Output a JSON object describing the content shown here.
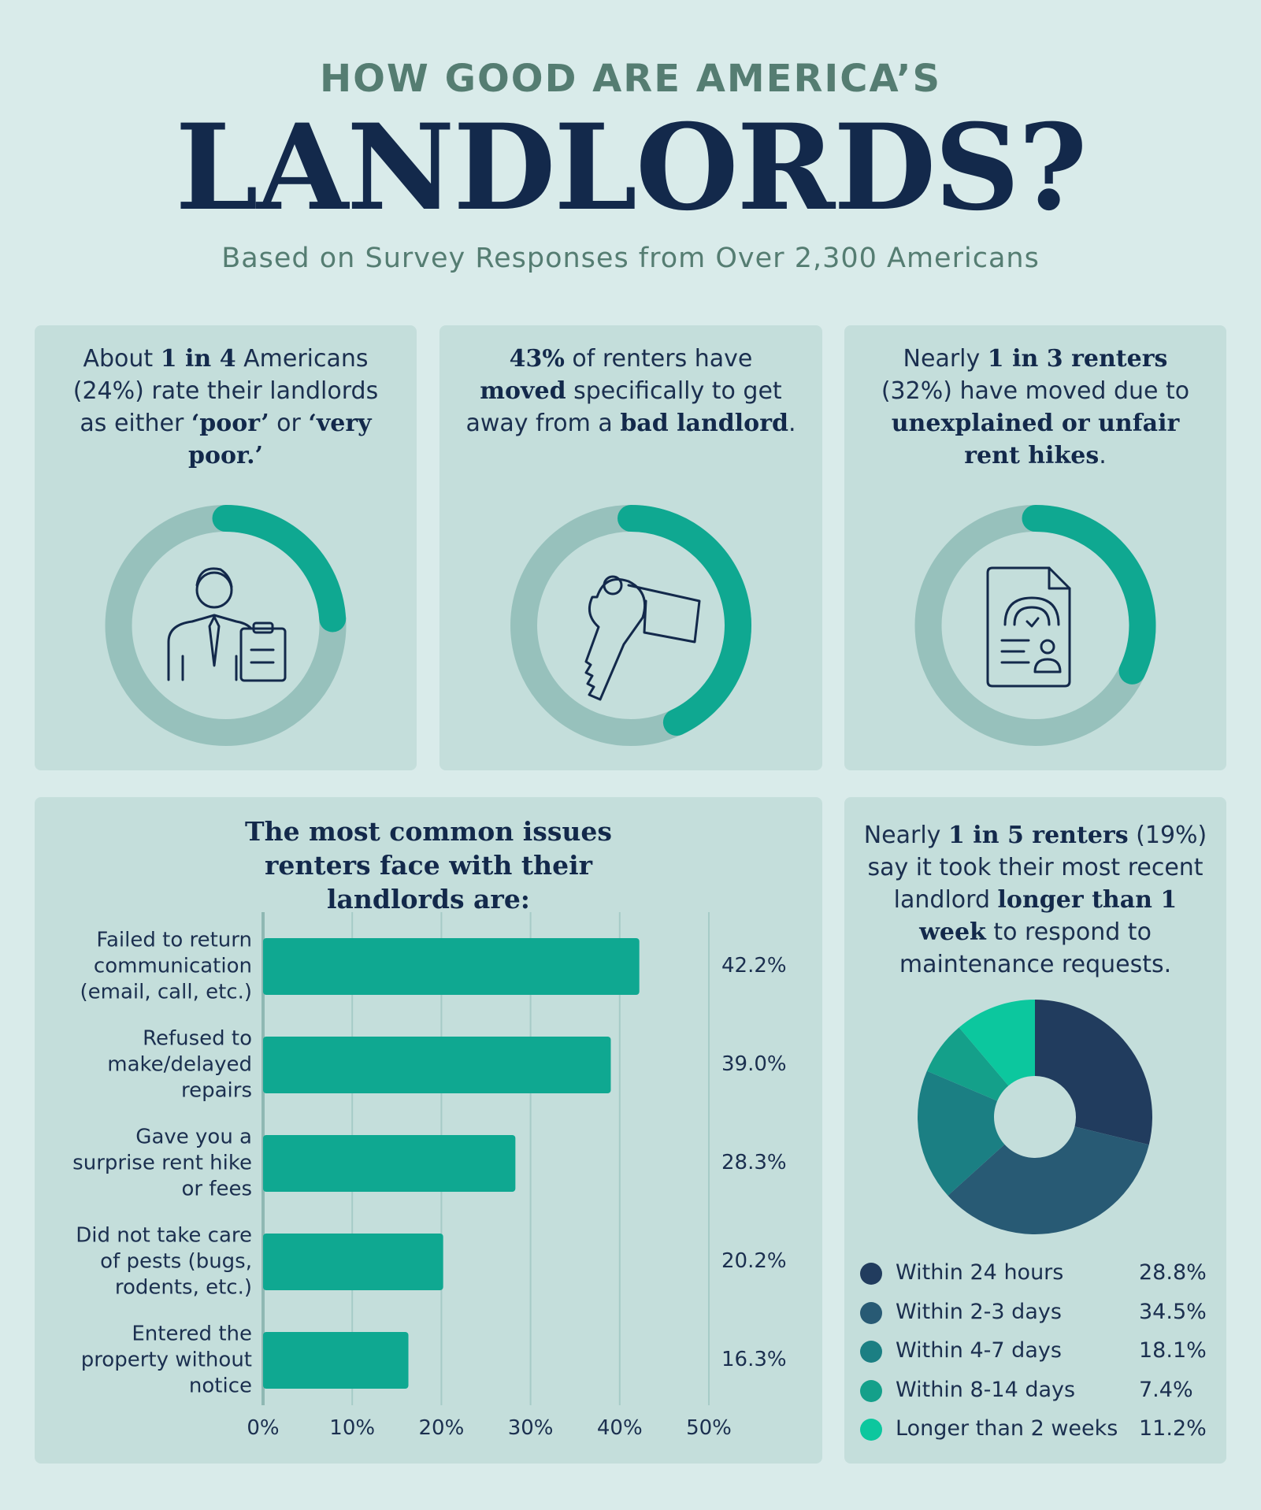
{
  "header": {
    "kicker": "HOW GOOD ARE AMERICA’S",
    "title": "LANDLORDS?",
    "subtitle": "Based on Survey Responses from Over 2,300 Americans"
  },
  "chart_data": [
    {
      "type": "ring",
      "text": [
        {
          "text": "About "
        },
        {
          "text": "1 in 4",
          "bold": true
        },
        {
          "text": " Americans (24%) rate their landlords as either "
        },
        {
          "text": "‘poor’",
          "bold": true
        },
        {
          "text": " or "
        },
        {
          "text": "‘very poor.’",
          "bold": true
        }
      ],
      "value": 24,
      "lim": [
        0,
        100
      ],
      "color": "#0fa891",
      "track_color": "#97c1bc"
    },
    {
      "type": "ring",
      "text": [
        {
          "text": "43%",
          "bold": true
        },
        {
          "text": " of renters have "
        },
        {
          "text": "moved",
          "bold": true
        },
        {
          "text": " specifically to get away from a "
        },
        {
          "text": "bad landlord",
          "bold": true
        },
        {
          "text": "."
        }
      ],
      "value": 43,
      "lim": [
        0,
        100
      ],
      "color": "#0fa891",
      "track_color": "#97c1bc"
    },
    {
      "type": "ring",
      "text": [
        {
          "text": "Nearly "
        },
        {
          "text": "1 in 3 renters",
          "bold": true
        },
        {
          "text": " (32%) have moved due to "
        },
        {
          "text": "unexplained or unfair rent hikes",
          "bold": true
        },
        {
          "text": "."
        }
      ],
      "value": 32,
      "lim": [
        0,
        100
      ],
      "color": "#0fa891",
      "track_color": "#97c1bc"
    },
    {
      "type": "hbar",
      "title": "The most common issues renters face with their landlords are:",
      "categories": [
        "Failed to return communication (email, call, etc.)",
        "Refused to make/delayed repairs",
        "Gave you a surprise rent hike or fees",
        "Did not take care of pests (bugs, rodents, etc.)",
        "Entered the property without notice"
      ],
      "values": [
        42.2,
        39.0,
        28.3,
        20.2,
        16.3
      ],
      "value_labels": [
        "42.2%",
        "39.0%",
        "28.3%",
        "20.2%",
        "16.3%"
      ],
      "color": "#0fa891",
      "xlim": [
        0,
        50
      ],
      "xticks": [
        {
          "value": 0,
          "label": "0%"
        },
        {
          "value": 10,
          "label": "10%"
        },
        {
          "value": 20,
          "label": "20%"
        },
        {
          "value": 30,
          "label": "30%"
        },
        {
          "value": 40,
          "label": "40%"
        },
        {
          "value": 50,
          "label": "50%"
        }
      ],
      "grid": true
    },
    {
      "type": "donut",
      "text": [
        {
          "text": "Nearly "
        },
        {
          "text": "1 in 5 renters",
          "bold": true
        },
        {
          "text": " (19%) say it took their most recent landlord "
        },
        {
          "text": "longer than 1 week",
          "bold": true
        },
        {
          "text": " to respond to maintenance requests."
        }
      ],
      "categories": [
        "Within 24 hours",
        "Within 2-3 days",
        "Within 4-7 days",
        "Within 8-14 days",
        "Longer than 2 weeks"
      ],
      "values": [
        28.8,
        34.5,
        18.1,
        7.4,
        11.2
      ],
      "value_labels": [
        "28.8%",
        "34.5%",
        "18.1%",
        "7.4%",
        "11.2%"
      ],
      "colors": [
        "#213c5e",
        "#285a74",
        "#1b7f83",
        "#14a08a",
        "#0cc79e"
      ]
    }
  ]
}
